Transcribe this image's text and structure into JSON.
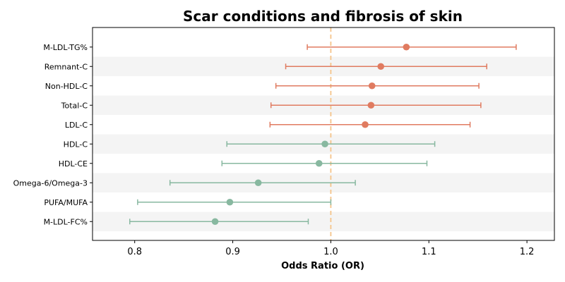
{
  "chart_data": {
    "type": "forest",
    "title": "Scar conditions and fibrosis of skin",
    "xlabel": "Odds Ratio (OR)",
    "xlim": [
      0.757,
      1.228
    ],
    "xticks": [
      0.8,
      0.9,
      1.0,
      1.1,
      1.2
    ],
    "xtick_labels": [
      "0.8",
      "0.9",
      "1.0",
      "1.1",
      "1.2"
    ],
    "reference_line": 1.0,
    "colors": {
      "risk": "#e07b60",
      "protective": "#88b8a0",
      "reference": "#f5c48a",
      "band": "#f4f4f4"
    },
    "rows": [
      {
        "label": "M-LDL-TG%",
        "or": 1.077,
        "lower": 0.976,
        "upper": 1.189,
        "group": "risk"
      },
      {
        "label": "Remnant-C",
        "or": 1.051,
        "lower": 0.954,
        "upper": 1.159,
        "group": "risk"
      },
      {
        "label": "Non-HDL-C",
        "or": 1.042,
        "lower": 0.944,
        "upper": 1.151,
        "group": "risk"
      },
      {
        "label": "Total-C",
        "or": 1.041,
        "lower": 0.939,
        "upper": 1.153,
        "group": "risk"
      },
      {
        "label": "LDL-C",
        "or": 1.035,
        "lower": 0.938,
        "upper": 1.142,
        "group": "risk"
      },
      {
        "label": "HDL-C",
        "or": 0.994,
        "lower": 0.894,
        "upper": 1.106,
        "group": "protective"
      },
      {
        "label": "HDL-CE",
        "or": 0.988,
        "lower": 0.889,
        "upper": 1.098,
        "group": "protective"
      },
      {
        "label": "Omega-6/Omega-3",
        "or": 0.926,
        "lower": 0.836,
        "upper": 1.025,
        "group": "protective"
      },
      {
        "label": "PUFA/MUFA",
        "or": 0.897,
        "lower": 0.803,
        "upper": 1.0,
        "group": "protective"
      },
      {
        "label": "M-LDL-FC%",
        "or": 0.882,
        "lower": 0.795,
        "upper": 0.977,
        "group": "protective"
      }
    ]
  }
}
